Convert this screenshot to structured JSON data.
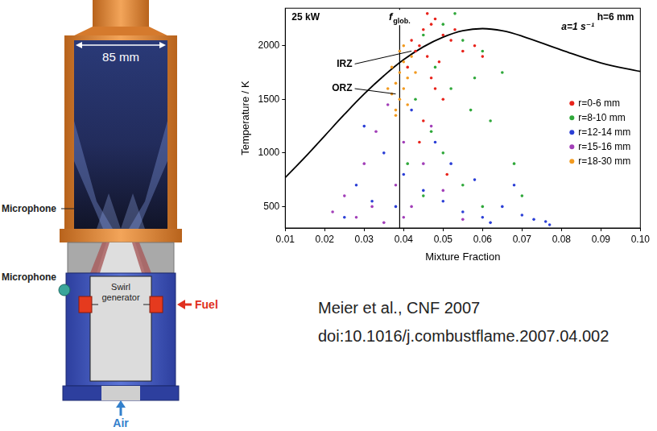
{
  "chart_data": {
    "type": "scatter",
    "xlabel": "Mixture Fraction",
    "ylabel": "Temperature / K",
    "xlim": [
      0.01,
      0.1
    ],
    "xticks": [
      0.01,
      0.02,
      0.03,
      0.04,
      0.05,
      0.06,
      0.07,
      0.08,
      0.09,
      {
        "value": 0.1,
        "label": "0.10"
      }
    ],
    "ylim": [
      300,
      2350
    ],
    "yticks": [
      500,
      1000,
      1500,
      2000
    ],
    "grid": false,
    "legend": "right",
    "marker": "circle",
    "corner_texts": {
      "left": "25 kW",
      "right": "h=6 mm"
    },
    "series": [
      {
        "name": "r=0-6 mm",
        "color": "#e8231b",
        "x": [
          0.042,
          0.045,
          0.047,
          0.05,
          0.043,
          0.048,
          0.052,
          0.046,
          0.044,
          0.049,
          0.041,
          0.053,
          0.055,
          0.047,
          0.05,
          0.045,
          0.058,
          0.06,
          0.044,
          0.051,
          0.046,
          0.048
        ],
        "values": [
          2050,
          2150,
          2200,
          2100,
          1950,
          2250,
          2050,
          1900,
          2000,
          1850,
          1800,
          2150,
          1950,
          1700,
          1500,
          1300,
          2000,
          1900,
          1100,
          800,
          2300,
          1600
        ]
      },
      {
        "name": "r=8-10 mm",
        "color": "#2fa83a",
        "x": [
          0.045,
          0.05,
          0.055,
          0.06,
          0.065,
          0.048,
          0.052,
          0.057,
          0.043,
          0.047,
          0.062,
          0.068,
          0.05,
          0.055,
          0.045,
          0.06,
          0.07,
          0.053,
          0.058,
          0.041
        ],
        "values": [
          2100,
          2200,
          2050,
          1950,
          1750,
          1800,
          1600,
          1400,
          1500,
          1200,
          1300,
          900,
          1000,
          700,
          600,
          500,
          600,
          2300,
          1700,
          900
        ]
      },
      {
        "name": "r=12-14 mm",
        "color": "#2b3fd6",
        "x": [
          0.03,
          0.035,
          0.04,
          0.045,
          0.05,
          0.055,
          0.06,
          0.065,
          0.07,
          0.028,
          0.025,
          0.038,
          0.042,
          0.048,
          0.052,
          0.058,
          0.032,
          0.062,
          0.068,
          0.073,
          0.076,
          0.077
        ],
        "values": [
          1250,
          1000,
          800,
          650,
          550,
          450,
          400,
          500,
          420,
          700,
          400,
          500,
          1400,
          1100,
          900,
          750,
          550,
          350,
          700,
          380,
          360,
          330
        ]
      },
      {
        "name": "r=15-16 mm",
        "color": "#a23fb8",
        "x": [
          0.025,
          0.03,
          0.033,
          0.036,
          0.04,
          0.038,
          0.042,
          0.045,
          0.028,
          0.035,
          0.05,
          0.055,
          0.022,
          0.032,
          0.047,
          0.04
        ],
        "values": [
          600,
          900,
          1200,
          1450,
          1100,
          700,
          500,
          900,
          400,
          350,
          650,
          380,
          450,
          500,
          1250,
          400
        ]
      },
      {
        "name": "r=18-30 mm",
        "color": "#f29a1f",
        "x": [
          0.037,
          0.038,
          0.039,
          0.04,
          0.041,
          0.039,
          0.038,
          0.04,
          0.042,
          0.037,
          0.041,
          0.039,
          0.036,
          0.04,
          0.038,
          0.043
        ],
        "values": [
          1550,
          1650,
          1750,
          1850,
          1700,
          1500,
          1400,
          1600,
          1900,
          1800,
          1450,
          1950,
          1600,
          2000,
          1350,
          1750
        ]
      }
    ],
    "curve": {
      "label": "a=1 s⁻¹",
      "color": "#000000",
      "line_style": "solid",
      "x": [
        0.01,
        0.015,
        0.02,
        0.025,
        0.03,
        0.035,
        0.04,
        0.045,
        0.05,
        0.055,
        0.06,
        0.065,
        0.07,
        0.08,
        0.09,
        0.1
      ],
      "values": [
        770,
        960,
        1160,
        1360,
        1550,
        1720,
        1870,
        1990,
        2080,
        2140,
        2160,
        2140,
        2090,
        1960,
        1840,
        1760
      ],
      "label_at": [
        0.08,
        2170
      ]
    },
    "vline": {
      "text": "f",
      "subscript": "glob.",
      "x": 0.039,
      "color": "#000000",
      "line_style": "solid"
    },
    "annotations": [
      {
        "text": "IRZ",
        "x": 0.027,
        "y": 1830,
        "arrow_to": [
          0.042,
          1950
        ]
      },
      {
        "text": "ORZ",
        "x": 0.027,
        "y": 1600,
        "arrow_to": [
          0.038,
          1550
        ]
      }
    ]
  },
  "diagram": {
    "dimension": "85 mm",
    "microphone_labels": [
      "Microphone",
      "Microphone"
    ],
    "swirl_label": "Swirl generator",
    "fuel_label": "Fuel",
    "air_label": "Air"
  },
  "citation": [
    "Meier et al., CNF 2007",
    "doi:10.1016/j.combustflame.2007.04.002"
  ]
}
